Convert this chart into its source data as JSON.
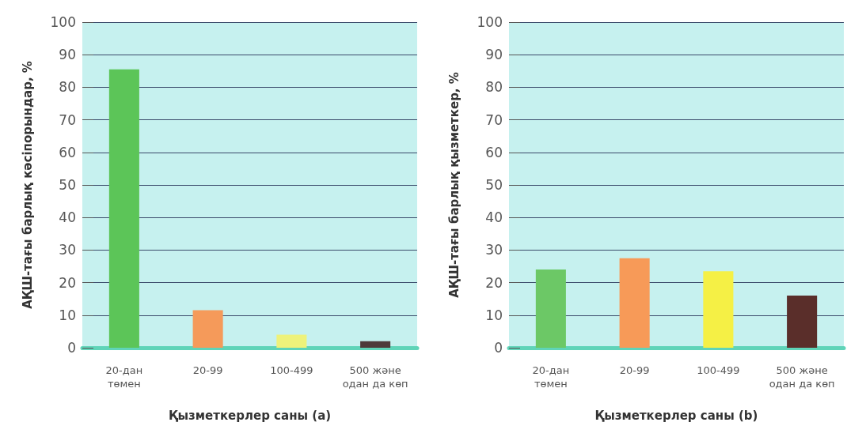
{
  "chart_data": [
    {
      "type": "bar",
      "xlabel": "Қызметкерлер саны (a)",
      "ylabel": "АҚШ-тағы барлық кәсіпорындар, %",
      "categories": [
        "20-дан\nтөмен",
        "20-99",
        "100-499",
        "500 және\nодан да көп"
      ],
      "values": [
        85.5,
        11.5,
        4,
        2
      ],
      "colors": [
        "#5cc558",
        "#f59a5a",
        "#eef27a",
        "#4e3a3a"
      ],
      "ylim": [
        0,
        100
      ],
      "yticks": [
        0,
        10,
        20,
        30,
        40,
        50,
        60,
        70,
        80,
        90,
        100
      ],
      "grid": "y"
    },
    {
      "type": "bar",
      "xlabel": "Қызметкерлер саны (b)",
      "ylabel": "АҚШ-тағы барлық қызметкер, %",
      "categories": [
        "20-дан\nтөмен",
        "20-99",
        "100-499",
        "500 және\nодан да көп"
      ],
      "values": [
        24,
        27.5,
        23.5,
        16
      ],
      "colors": [
        "#6cc866",
        "#f79a58",
        "#f5f045",
        "#5a2e2a"
      ],
      "ylim": [
        0,
        100
      ],
      "yticks": [
        0,
        10,
        20,
        30,
        40,
        50,
        60,
        70,
        80,
        90,
        100
      ],
      "grid": "y"
    }
  ]
}
